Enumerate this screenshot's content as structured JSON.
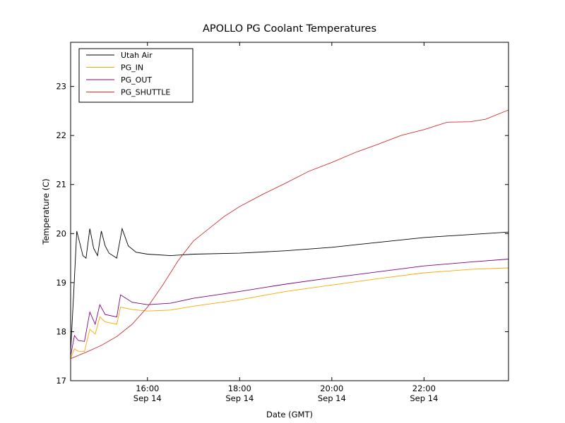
{
  "chart_data": {
    "type": "line",
    "title": "APOLLO PG Coolant Temperatures",
    "xlabel": "Date (GMT)",
    "ylabel": "Temperature (C)",
    "xlim": [
      "Sep 14 14:20",
      "Sep 14 23:50"
    ],
    "ylim": [
      17,
      23.9
    ],
    "x_ticks": [
      {
        "time": "16:00",
        "date": "Sep 14"
      },
      {
        "time": "18:00",
        "date": "Sep 14"
      },
      {
        "time": "20:00",
        "date": "Sep 14"
      },
      {
        "time": "22:00",
        "date": "Sep 14"
      }
    ],
    "y_ticks": [
      "17",
      "18",
      "19",
      "20",
      "21",
      "22",
      "23"
    ],
    "grid": false,
    "legend_position": "top-left",
    "series": [
      {
        "name": "Utah Air",
        "color": "#000000",
        "points": [
          [
            "Sep 14 14:20",
            17.6
          ],
          [
            "Sep 14 14:24",
            18.8
          ],
          [
            "Sep 14 14:28",
            20.05
          ],
          [
            "Sep 14 14:32",
            19.8
          ],
          [
            "Sep 14 14:36",
            19.55
          ],
          [
            "Sep 14 14:40",
            19.5
          ],
          [
            "Sep 14 14:45",
            20.1
          ],
          [
            "Sep 14 14:50",
            19.7
          ],
          [
            "Sep 14 14:55",
            19.55
          ],
          [
            "Sep 14 15:00",
            20.05
          ],
          [
            "Sep 14 15:05",
            19.75
          ],
          [
            "Sep 14 15:10",
            19.6
          ],
          [
            "Sep 14 15:20",
            19.5
          ],
          [
            "Sep 14 15:27",
            20.1
          ],
          [
            "Sep 14 15:35",
            19.75
          ],
          [
            "Sep 14 15:45",
            19.62
          ],
          [
            "Sep 14 16:00",
            19.58
          ],
          [
            "Sep 14 16:30",
            19.55
          ],
          [
            "Sep 14 17:00",
            19.58
          ],
          [
            "Sep 14 18:00",
            19.6
          ],
          [
            "Sep 14 19:00",
            19.65
          ],
          [
            "Sep 14 20:00",
            19.72
          ],
          [
            "Sep 14 21:00",
            19.82
          ],
          [
            "Sep 14 22:00",
            19.92
          ],
          [
            "Sep 14 23:00",
            19.98
          ],
          [
            "Sep 14 23:50",
            20.03
          ]
        ]
      },
      {
        "name": "PG_IN",
        "color": "#ffa500",
        "points": [
          [
            "Sep 14 14:20",
            17.45
          ],
          [
            "Sep 14 14:25",
            17.65
          ],
          [
            "Sep 14 14:30",
            17.6
          ],
          [
            "Sep 14 14:38",
            17.6
          ],
          [
            "Sep 14 14:45",
            18.05
          ],
          [
            "Sep 14 14:52",
            17.95
          ],
          [
            "Sep 14 14:58",
            18.3
          ],
          [
            "Sep 14 15:05",
            18.2
          ],
          [
            "Sep 14 15:20",
            18.15
          ],
          [
            "Sep 14 15:25",
            18.5
          ],
          [
            "Sep 14 15:40",
            18.45
          ],
          [
            "Sep 14 16:00",
            18.42
          ],
          [
            "Sep 14 16:30",
            18.44
          ],
          [
            "Sep 14 17:00",
            18.52
          ],
          [
            "Sep 14 18:00",
            18.65
          ],
          [
            "Sep 14 19:00",
            18.82
          ],
          [
            "Sep 14 20:00",
            18.95
          ],
          [
            "Sep 14 21:00",
            19.08
          ],
          [
            "Sep 14 22:00",
            19.2
          ],
          [
            "Sep 14 23:00",
            19.27
          ],
          [
            "Sep 14 23:50",
            19.3
          ]
        ]
      },
      {
        "name": "PG_OUT",
        "color": "#800080",
        "points": [
          [
            "Sep 14 14:20",
            17.5
          ],
          [
            "Sep 14 14:25",
            17.92
          ],
          [
            "Sep 14 14:30",
            17.82
          ],
          [
            "Sep 14 14:38",
            17.8
          ],
          [
            "Sep 14 14:45",
            18.4
          ],
          [
            "Sep 14 14:52",
            18.15
          ],
          [
            "Sep 14 14:58",
            18.55
          ],
          [
            "Sep 14 15:05",
            18.35
          ],
          [
            "Sep 14 15:20",
            18.3
          ],
          [
            "Sep 14 15:25",
            18.75
          ],
          [
            "Sep 14 15:40",
            18.6
          ],
          [
            "Sep 14 16:00",
            18.55
          ],
          [
            "Sep 14 16:30",
            18.58
          ],
          [
            "Sep 14 17:00",
            18.68
          ],
          [
            "Sep 14 18:00",
            18.82
          ],
          [
            "Sep 14 19:00",
            18.97
          ],
          [
            "Sep 14 20:00",
            19.1
          ],
          [
            "Sep 14 21:00",
            19.22
          ],
          [
            "Sep 14 22:00",
            19.34
          ],
          [
            "Sep 14 23:00",
            19.42
          ],
          [
            "Sep 14 23:50",
            19.48
          ]
        ]
      },
      {
        "name": "PG_SHUTTLE",
        "color": "#cd3333",
        "points": [
          [
            "Sep 14 14:20",
            17.45
          ],
          [
            "Sep 14 14:40",
            17.58
          ],
          [
            "Sep 14 15:00",
            17.72
          ],
          [
            "Sep 14 15:20",
            17.9
          ],
          [
            "Sep 14 15:40",
            18.15
          ],
          [
            "Sep 14 16:00",
            18.5
          ],
          [
            "Sep 14 16:20",
            18.95
          ],
          [
            "Sep 14 16:40",
            19.45
          ],
          [
            "Sep 14 17:00",
            19.85
          ],
          [
            "Sep 14 17:20",
            20.1
          ],
          [
            "Sep 14 17:40",
            20.35
          ],
          [
            "Sep 14 18:00",
            20.55
          ],
          [
            "Sep 14 18:30",
            20.8
          ],
          [
            "Sep 14 19:00",
            21.03
          ],
          [
            "Sep 14 19:30",
            21.27
          ],
          [
            "Sep 14 20:00",
            21.45
          ],
          [
            "Sep 14 20:30",
            21.65
          ],
          [
            "Sep 14 21:00",
            21.82
          ],
          [
            "Sep 14 21:30",
            22.0
          ],
          [
            "Sep 14 22:00",
            22.12
          ],
          [
            "Sep 14 22:30",
            22.27
          ],
          [
            "Sep 14 23:00",
            22.28
          ],
          [
            "Sep 14 23:20",
            22.33
          ],
          [
            "Sep 14 23:50",
            22.52
          ]
        ]
      }
    ]
  }
}
